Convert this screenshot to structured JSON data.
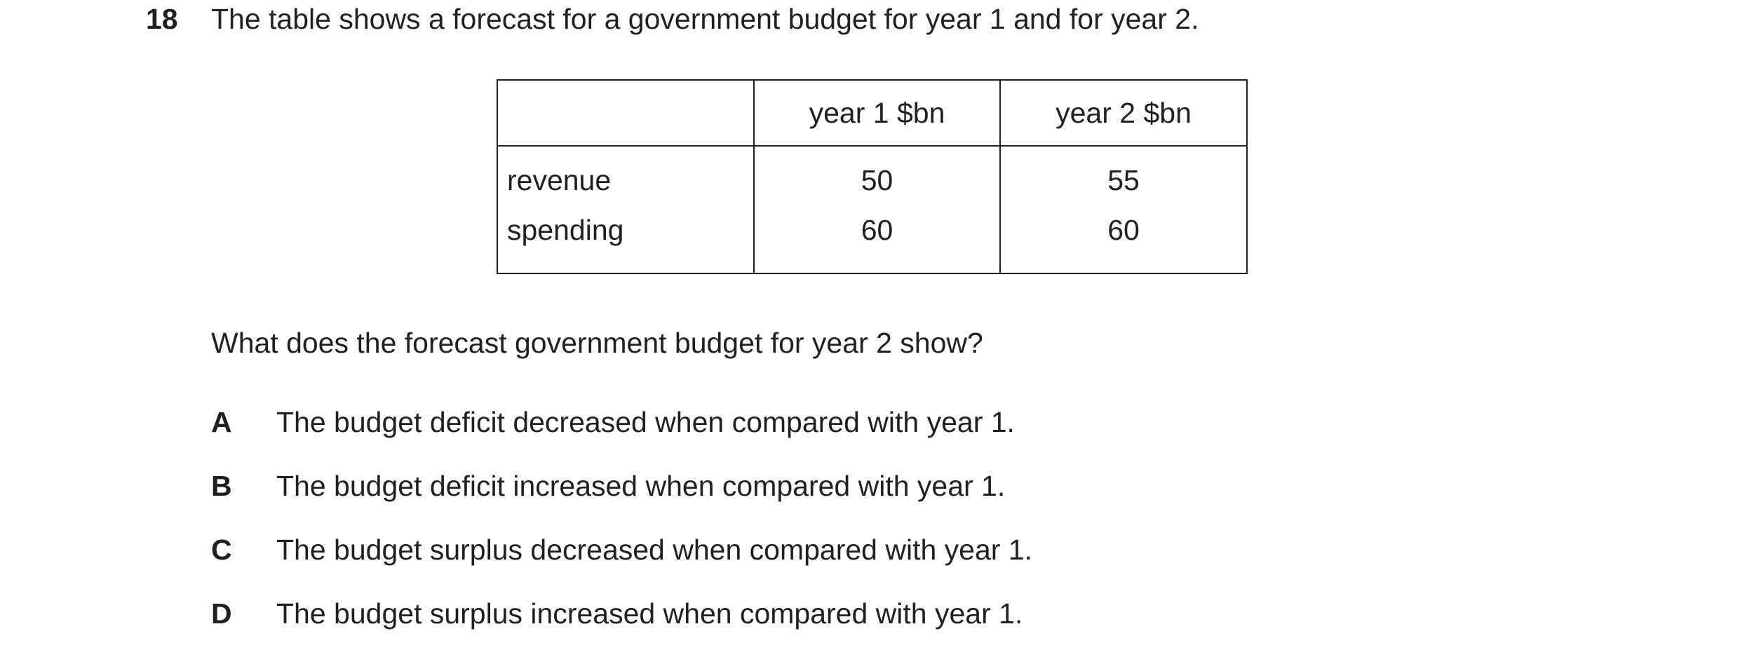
{
  "question_number": "18",
  "stem": "The table shows a forecast for a government budget for year 1 and for year 2.",
  "table": {
    "headers": [
      "",
      "year 1 $bn",
      "year 2 $bn"
    ],
    "rows": [
      {
        "label": "revenue",
        "year1": "50",
        "year2": "55"
      },
      {
        "label": "spending",
        "year1": "60",
        "year2": "60"
      }
    ]
  },
  "question": "What does the forecast government budget for year 2 show?",
  "options": [
    {
      "letter": "A",
      "text": "The budget deficit decreased when compared with year 1."
    },
    {
      "letter": "B",
      "text": "The budget deficit increased when compared with year 1."
    },
    {
      "letter": "C",
      "text": "The budget surplus decreased when compared with year 1."
    },
    {
      "letter": "D",
      "text": "The budget surplus increased when compared with year 1."
    }
  ]
}
